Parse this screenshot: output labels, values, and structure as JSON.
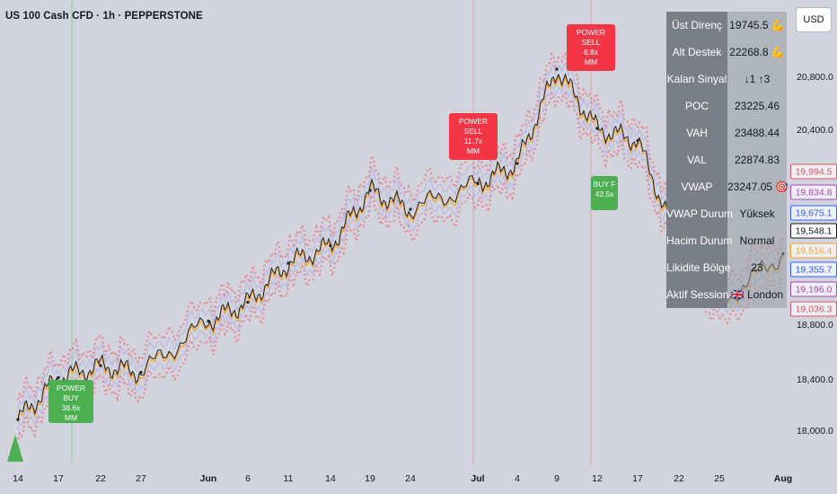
{
  "header": {
    "symbol_title": "US 100 Cash CFD · 1h · PEPPERSTONE",
    "currency": "USD"
  },
  "price_axis": {
    "ticks": [
      "20,800.0",
      "20,400.0",
      "18,800.0",
      "18,400.0",
      "18,000.0"
    ],
    "tags": [
      {
        "label": "19,994.5",
        "color": "#e05563"
      },
      {
        "label": "19,834.8",
        "color": "#ab47bc"
      },
      {
        "label": "19,675.1",
        "color": "#2962ff"
      },
      {
        "label": "19,548.1",
        "color": "#131722"
      },
      {
        "label": "19,516.4",
        "color": "#f7a12f"
      },
      {
        "label": "19,355.7",
        "color": "#2962ff"
      },
      {
        "label": "19,196.0",
        "color": "#ab47bc"
      },
      {
        "label": "19,036.3",
        "color": "#e05563"
      }
    ]
  },
  "time_axis": {
    "ticks": [
      {
        "label": "14",
        "bold": false
      },
      {
        "label": "17",
        "bold": false
      },
      {
        "label": "22",
        "bold": false
      },
      {
        "label": "27",
        "bold": false
      },
      {
        "label": "Jun",
        "bold": true
      },
      {
        "label": "6",
        "bold": false
      },
      {
        "label": "11",
        "bold": false
      },
      {
        "label": "14",
        "bold": false
      },
      {
        "label": "19",
        "bold": false
      },
      {
        "label": "24",
        "bold": false
      },
      {
        "label": "Jul",
        "bold": true
      },
      {
        "label": "4",
        "bold": false
      },
      {
        "label": "9",
        "bold": false
      },
      {
        "label": "12",
        "bold": false
      },
      {
        "label": "17",
        "bold": false
      },
      {
        "label": "22",
        "bold": false
      },
      {
        "label": "25",
        "bold": false
      },
      {
        "label": "Aug",
        "bold": true
      }
    ]
  },
  "signals": [
    {
      "type": "sell",
      "lines": [
        "POWER SELL",
        "8.8x",
        "MM"
      ]
    },
    {
      "type": "sell",
      "lines": [
        "POWER SELL",
        "11.7x",
        "MM"
      ]
    },
    {
      "type": "buy",
      "lines": [
        "BUY F",
        "42.5x"
      ]
    },
    {
      "type": "buy",
      "lines": [
        "POWER BUY",
        "38.6x",
        "MM"
      ]
    }
  ],
  "stats_table": {
    "rows": [
      {
        "label": "Üst Direnç",
        "value": "19745.5 💪"
      },
      {
        "label": "Alt Destek",
        "value": "22268.8 💪"
      },
      {
        "label": "Kalan Sinyal",
        "value": "↓1 ↑3"
      },
      {
        "label": "POC",
        "value": "23225.46"
      },
      {
        "label": "VAH",
        "value": "23488.44"
      },
      {
        "label": "VAL",
        "value": "22874.83"
      },
      {
        "label": "VWAP",
        "value": "23247.05 🎯"
      },
      {
        "label": "VWAP Durum",
        "value": "Yüksek"
      },
      {
        "label": "Hacim Durum",
        "value": "Normal"
      },
      {
        "label": "Likidite Bölge",
        "value": "23"
      },
      {
        "label": "Aktif Session",
        "value": "🇬🇧 London"
      }
    ]
  },
  "chart_data": {
    "type": "line",
    "title": "",
    "xlabel": "",
    "ylabel": "",
    "x": [
      "May 14",
      "May 17",
      "May 22",
      "May 27",
      "Jun 1",
      "Jun 6",
      "Jun 11",
      "Jun 14",
      "Jun 19",
      "Jun 24",
      "Jul 1",
      "Jul 4",
      "Jul 9",
      "Jul 12",
      "Jul 17",
      "Jul 22",
      "Jul 25",
      "Aug 1"
    ],
    "series": [
      {
        "values": [
          18120,
          18430,
          18520,
          18470,
          18850,
          18990,
          19280,
          19410,
          19820,
          19680,
          19870,
          20020,
          20720,
          20280,
          20190,
          19420,
          18980,
          19350
        ]
      }
    ],
    "ylim": [
      17900,
      21100
    ],
    "grid": false
  }
}
